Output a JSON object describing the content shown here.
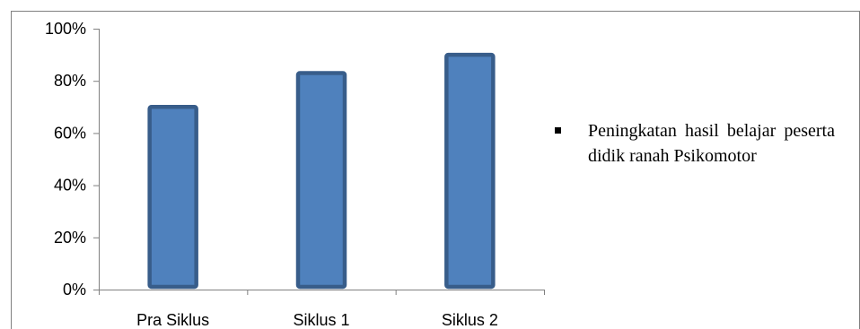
{
  "chart_data": {
    "type": "bar",
    "categories": [
      "Pra Siklus",
      "Siklus 1",
      "Siklus 2"
    ],
    "values": [
      70,
      83,
      90
    ],
    "ylim": [
      0,
      100
    ],
    "yticks": [
      "0%",
      "20%",
      "40%",
      "60%",
      "80%",
      "100%"
    ],
    "legend_position": "right",
    "legend": [
      "Peningkatan hasil belajar peserta didik ranah Psikomotor"
    ],
    "grid": false,
    "colors": {
      "bar_fill": "#4F81BD",
      "bar_stroke": "#385D8A",
      "axis": "#808080"
    }
  }
}
